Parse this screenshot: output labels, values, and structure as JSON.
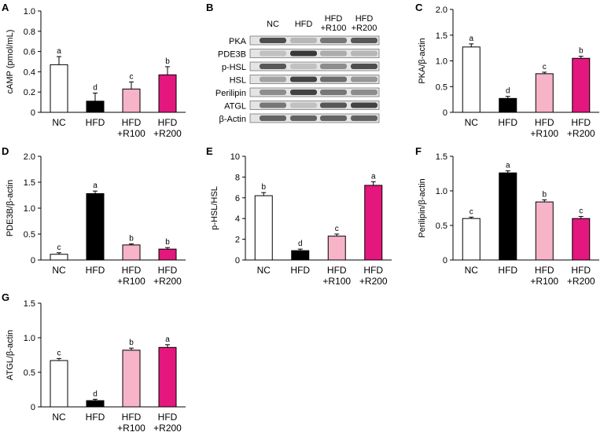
{
  "colors": {
    "nc": "#ffffff",
    "hfd": "#000000",
    "r100": "#f7b3c8",
    "r200": "#e3177d"
  },
  "chart_data": [
    {
      "id": "A",
      "panel_label": "A",
      "type": "bar",
      "categories": [
        [
          "NC"
        ],
        [
          "HFD"
        ],
        [
          "HFD",
          "+R100"
        ],
        [
          "HFD",
          "+R200"
        ]
      ],
      "values": [
        0.47,
        0.11,
        0.23,
        0.37
      ],
      "errors": [
        0.08,
        0.08,
        0.07,
        0.08
      ],
      "letters": [
        "a",
        "d",
        "c",
        "b"
      ],
      "ylabel": "cAMP (pmol/mL)",
      "ylim": [
        0,
        1.0
      ],
      "yticks": [
        "0",
        "0.2",
        "0.4",
        "0.6",
        "0.8",
        "1.0"
      ],
      "grid": false
    },
    {
      "id": "C",
      "panel_label": "C",
      "type": "bar",
      "categories": [
        [
          "NC"
        ],
        [
          "HFD"
        ],
        [
          "HFD",
          "+R100"
        ],
        [
          "HFD",
          "+R200"
        ]
      ],
      "values": [
        1.27,
        0.27,
        0.75,
        1.05
      ],
      "errors": [
        0.06,
        0.04,
        0.03,
        0.04
      ],
      "letters": [
        "a",
        "d",
        "c",
        "b"
      ],
      "ylabel": "PKA/β-actin",
      "ylim": [
        0,
        2.0
      ],
      "yticks": [
        "0",
        "0.5",
        "1.0",
        "1.5",
        "2.0"
      ],
      "grid": false
    },
    {
      "id": "D",
      "panel_label": "D",
      "type": "bar",
      "categories": [
        [
          "NC"
        ],
        [
          "HFD"
        ],
        [
          "HFD",
          "+R100"
        ],
        [
          "HFD",
          "+R200"
        ]
      ],
      "values": [
        0.11,
        1.28,
        0.29,
        0.21
      ],
      "errors": [
        0.03,
        0.05,
        0.02,
        0.03
      ],
      "letters": [
        "c",
        "a",
        "b",
        "b"
      ],
      "ylabel": "PDE3B/β-actin",
      "ylim": [
        0,
        2.0
      ],
      "yticks": [
        "0",
        "0.5",
        "1.0",
        "1.5",
        "2.0"
      ],
      "grid": false
    },
    {
      "id": "E",
      "panel_label": "E",
      "type": "bar",
      "categories": [
        [
          "NC"
        ],
        [
          "HFD"
        ],
        [
          "HFD",
          "+R100"
        ],
        [
          "HFD",
          "+R200"
        ]
      ],
      "values": [
        6.2,
        0.9,
        2.3,
        7.2
      ],
      "errors": [
        0.3,
        0.15,
        0.2,
        0.35
      ],
      "letters": [
        "b",
        "d",
        "c",
        "a"
      ],
      "ylabel": "p-HSL/HSL",
      "ylim": [
        0,
        10
      ],
      "yticks": [
        "0",
        "2",
        "4",
        "6",
        "8",
        "10"
      ],
      "grid": false
    },
    {
      "id": "F",
      "panel_label": "F",
      "type": "bar",
      "categories": [
        [
          "NC"
        ],
        [
          "HFD"
        ],
        [
          "HFD",
          "+R100"
        ],
        [
          "HFD",
          "+R200"
        ]
      ],
      "values": [
        0.6,
        1.26,
        0.84,
        0.6
      ],
      "errors": [
        0.02,
        0.03,
        0.03,
        0.03
      ],
      "letters": [
        "c",
        "a",
        "b",
        "c"
      ],
      "ylabel": "Perilipin/β-actin",
      "ylim": [
        0,
        1.5
      ],
      "yticks": [
        "0",
        "0.5",
        "1.0",
        "1.5"
      ],
      "grid": false
    },
    {
      "id": "G",
      "panel_label": "G",
      "type": "bar",
      "categories": [
        [
          "NC"
        ],
        [
          "HFD"
        ],
        [
          "HFD",
          "+R100"
        ],
        [
          "HFD",
          "+R200"
        ]
      ],
      "values": [
        0.67,
        0.09,
        0.82,
        0.86
      ],
      "errors": [
        0.03,
        0.02,
        0.03,
        0.04
      ],
      "letters": [
        "c",
        "d",
        "b",
        "a"
      ],
      "ylabel": "ATGL/β-actin",
      "ylim": [
        0,
        1.5
      ],
      "yticks": [
        "0",
        "0.5",
        "1.0",
        "1.5"
      ],
      "grid": false
    }
  ],
  "blot": {
    "panel_label": "B",
    "lanes": [
      [
        "NC"
      ],
      [
        "HFD"
      ],
      [
        "HFD",
        "+R100"
      ],
      [
        "HFD",
        "+R200"
      ]
    ],
    "rows": [
      {
        "label": "PKA",
        "intensity": [
          0.75,
          0.25,
          0.55,
          0.7
        ]
      },
      {
        "label": "PDE3B",
        "intensity": [
          0.2,
          0.85,
          0.3,
          0.25
        ]
      },
      {
        "label": "p-HSL",
        "intensity": [
          0.7,
          0.2,
          0.45,
          0.75
        ]
      },
      {
        "label": "HSL",
        "intensity": [
          0.35,
          0.8,
          0.6,
          0.4
        ]
      },
      {
        "label": "Perilipin",
        "intensity": [
          0.45,
          0.8,
          0.55,
          0.45
        ]
      },
      {
        "label": "ATGL",
        "intensity": [
          0.55,
          0.2,
          0.7,
          0.8
        ]
      },
      {
        "label": "β-Actin",
        "intensity": [
          0.65,
          0.65,
          0.65,
          0.65
        ]
      }
    ]
  }
}
